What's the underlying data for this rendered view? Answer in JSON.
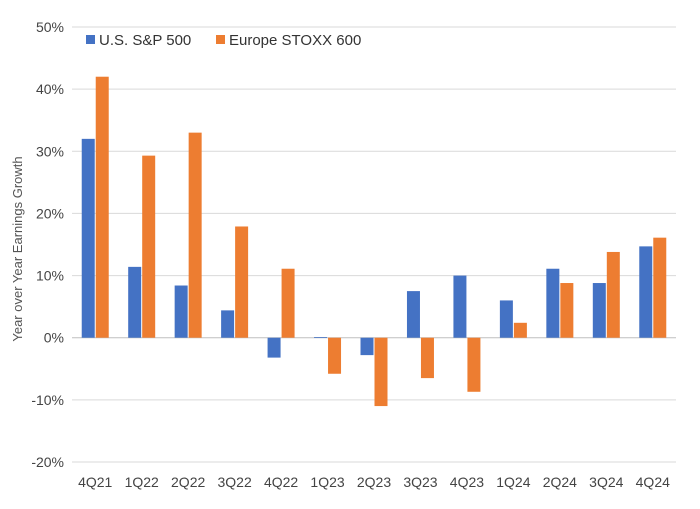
{
  "chart_data": {
    "type": "bar",
    "title": "",
    "xlabel": "",
    "ylabel": "Year over Year Earnings Growth",
    "ylim": [
      -20,
      50
    ],
    "yticks": [
      -20,
      -10,
      0,
      10,
      20,
      30,
      40,
      50
    ],
    "ytick_labels": [
      "-20%",
      "-10%",
      "0%",
      "10%",
      "20%",
      "30%",
      "40%",
      "50%"
    ],
    "grid": true,
    "legend_position": "top-left",
    "categories": [
      "4Q21",
      "1Q22",
      "2Q22",
      "3Q22",
      "4Q22",
      "1Q23",
      "2Q23",
      "3Q23",
      "4Q23",
      "1Q24",
      "2Q24",
      "3Q24",
      "4Q24"
    ],
    "series": [
      {
        "name": "U.S. S&P 500",
        "color": "#4472C4",
        "values": [
          32.0,
          11.4,
          8.4,
          4.4,
          -3.2,
          0.1,
          -2.8,
          7.5,
          10.0,
          6.0,
          11.1,
          8.8,
          14.7
        ]
      },
      {
        "name": "Europe STOXX 600",
        "color": "#ED7D31",
        "values": [
          42.0,
          29.3,
          33.0,
          17.9,
          11.1,
          -5.8,
          -11.0,
          -6.5,
          -8.7,
          2.4,
          8.8,
          13.8,
          16.1
        ]
      }
    ]
  }
}
